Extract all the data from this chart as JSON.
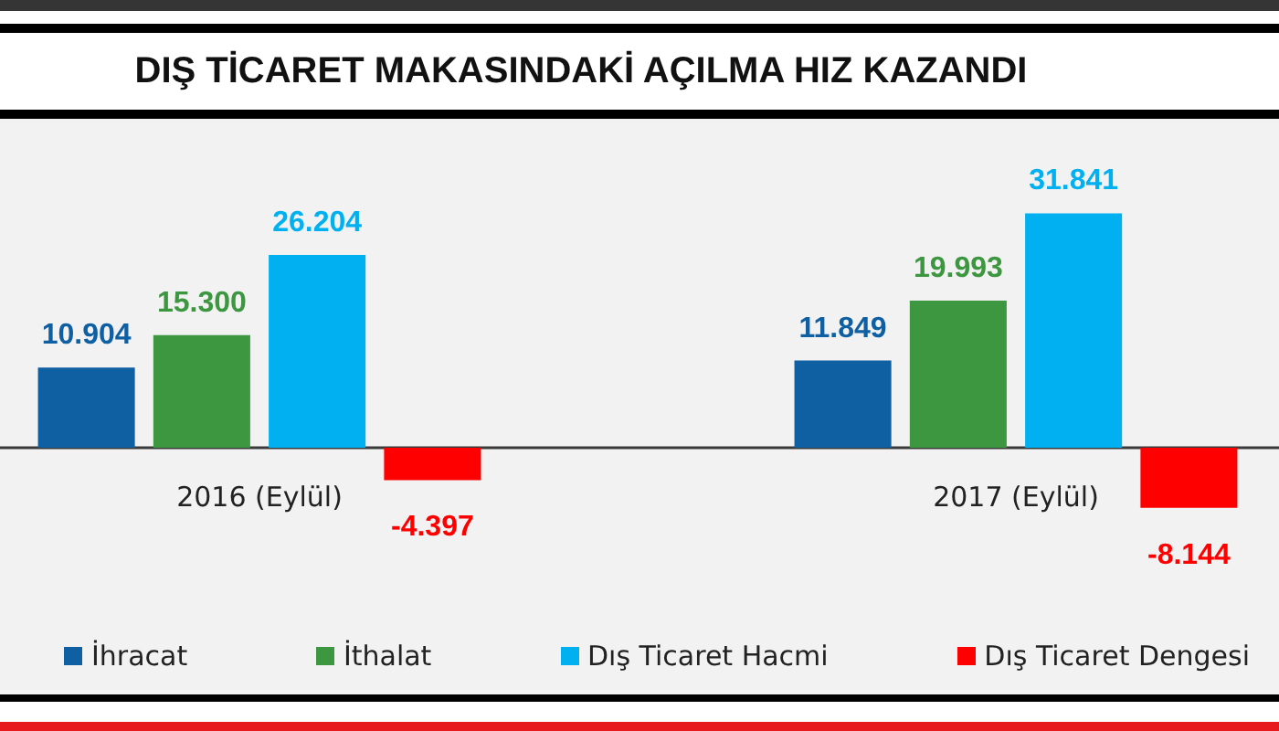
{
  "chart_data": {
    "type": "bar",
    "title": "DIŞ TİCARET MAKASINDAKİ AÇILMA HIZ KAZANDI",
    "categories": [
      "2016 (Eylül)",
      "2017 (Eylül)"
    ],
    "series": [
      {
        "name": "İhracat",
        "color": "#0f5fa3",
        "values": [
          10.904,
          11.849
        ],
        "value_labels": [
          "10.904",
          "11.849"
        ]
      },
      {
        "name": "İthalat",
        "color": "#3d9640",
        "values": [
          15.3,
          19.993
        ],
        "value_labels": [
          "15.300",
          "19.993"
        ]
      },
      {
        "name": "Dış Ticaret Hacmi",
        "color": "#00b0f0",
        "values": [
          26.204,
          31.841
        ],
        "value_labels": [
          "26.204",
          "31.841"
        ]
      },
      {
        "name": "Dış Ticaret Dengesi",
        "color": "#ff0000",
        "values": [
          -4.397,
          -8.144
        ],
        "value_labels": [
          "-4.397",
          "-8.144"
        ]
      }
    ],
    "legend": "bottom"
  }
}
